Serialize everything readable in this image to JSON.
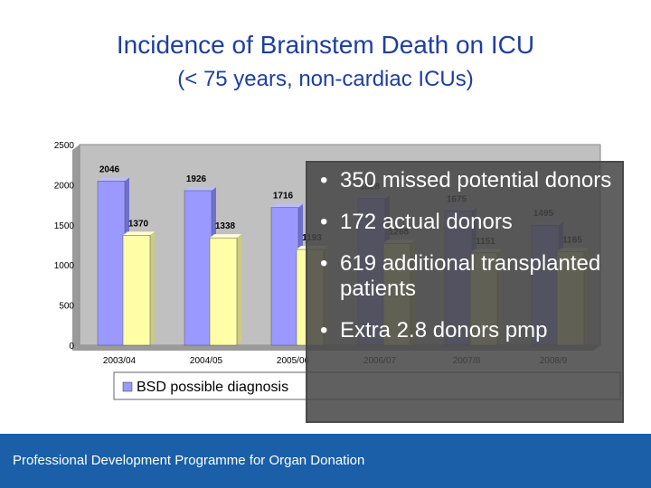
{
  "title": "Incidence of Brainstem Death on ICU",
  "subtitle": "(< 75 years, non-cardiac ICUs)",
  "chart_data": {
    "type": "bar",
    "categories": [
      "2003/04",
      "2004/05",
      "2005/06",
      "2006/07",
      "2007/8",
      "2008/9"
    ],
    "series": [
      {
        "name": "BSD possible diagnosis",
        "values": [
          2046,
          1926,
          1716,
          1828,
          1675,
          1495
        ],
        "color": "#9999ff"
      },
      {
        "name": "",
        "values": [
          1370,
          1338,
          1193,
          1268,
          1151,
          1165
        ],
        "color": "#ffffa8"
      }
    ],
    "ylim": [
      0,
      2500
    ],
    "yticks": [
      "0",
      "500",
      "1000",
      "1500",
      "2000",
      "2500"
    ],
    "grid": false,
    "legend": "bottom",
    "plot_background": "#c0c0c0"
  },
  "bullets": [
    "350 missed potential donors",
    "172 actual donors",
    "619 additional transplanted patients",
    "Extra 2.8 donors pmp"
  ],
  "footer": "Professional Development Programme for Organ Donation"
}
